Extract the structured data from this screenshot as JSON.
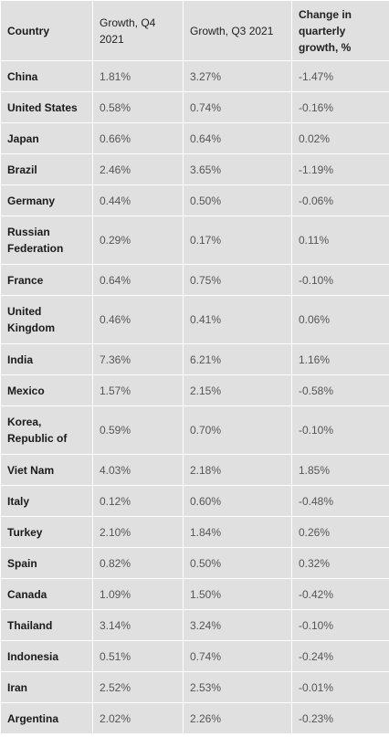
{
  "table": {
    "headers": {
      "country": "Country",
      "q4": "Growth, Q4 2021",
      "q3": "Growth, Q3 2021",
      "change": "Change in quarterly growth, %"
    },
    "rows": [
      {
        "country": "China",
        "q4": "1.81%",
        "q3": "3.27%",
        "change": "-1.47%"
      },
      {
        "country": "United States",
        "q4": "0.58%",
        "q3": "0.74%",
        "change": "-0.16%"
      },
      {
        "country": "Japan",
        "q4": "0.66%",
        "q3": "0.64%",
        "change": "0.02%"
      },
      {
        "country": "Brazil",
        "q4": "2.46%",
        "q3": "3.65%",
        "change": "-1.19%"
      },
      {
        "country": "Germany",
        "q4": "0.44%",
        "q3": "0.50%",
        "change": "-0.06%"
      },
      {
        "country": "Russian Federation",
        "q4": "0.29%",
        "q3": "0.17%",
        "change": "0.11%"
      },
      {
        "country": "France",
        "q4": "0.64%",
        "q3": "0.75%",
        "change": "-0.10%"
      },
      {
        "country": "United Kingdom",
        "q4": "0.46%",
        "q3": "0.41%",
        "change": "0.06%"
      },
      {
        "country": "India",
        "q4": "7.36%",
        "q3": "6.21%",
        "change": "1.16%"
      },
      {
        "country": "Mexico",
        "q4": "1.57%",
        "q3": "2.15%",
        "change": "-0.58%"
      },
      {
        "country": "Korea, Republic of",
        "q4": "0.59%",
        "q3": "0.70%",
        "change": "-0.10%"
      },
      {
        "country": "Viet Nam",
        "q4": "4.03%",
        "q3": "2.18%",
        "change": "1.85%"
      },
      {
        "country": "Italy",
        "q4": "0.12%",
        "q3": "0.60%",
        "change": "-0.48%"
      },
      {
        "country": "Turkey",
        "q4": "2.10%",
        "q3": "1.84%",
        "change": "0.26%"
      },
      {
        "country": "Spain",
        "q4": "0.82%",
        "q3": "0.50%",
        "change": "0.32%"
      },
      {
        "country": "Canada",
        "q4": "1.09%",
        "q3": "1.50%",
        "change": "-0.42%"
      },
      {
        "country": "Thailand",
        "q4": "3.14%",
        "q3": "3.24%",
        "change": "-0.10%"
      },
      {
        "country": "Indonesia",
        "q4": "0.51%",
        "q3": "0.74%",
        "change": "-0.24%"
      },
      {
        "country": "Iran",
        "q4": "2.52%",
        "q3": "2.53%",
        "change": "-0.01%"
      },
      {
        "country": "Argentina",
        "q4": "2.02%",
        "q3": "2.26%",
        "change": "-0.23%"
      }
    ]
  },
  "colors": {
    "cell_background": "#e0e0e0",
    "grid_lines": "#ffffff",
    "label_text": "#1a1a1a",
    "value_text": "#555555"
  }
}
